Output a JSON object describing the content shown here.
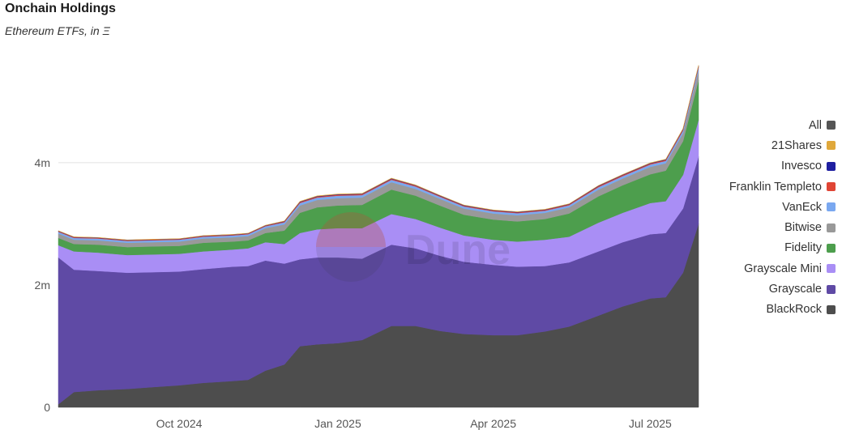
{
  "header": {
    "title": "Onchain Holdings",
    "subtitle": "Ethereum ETFs, in Ξ"
  },
  "watermark": "Dune",
  "chart_data": {
    "type": "area",
    "stacked": true,
    "title": "Onchain Holdings",
    "subtitle": "Ethereum ETFs, in Ξ",
    "x": [
      "2024-07-23",
      "2024-08-01",
      "2024-08-15",
      "2024-09-01",
      "2024-09-15",
      "2024-10-01",
      "2024-10-15",
      "2024-11-01",
      "2024-11-10",
      "2024-11-20",
      "2024-12-01",
      "2024-12-10",
      "2024-12-20",
      "2025-01-01",
      "2025-01-15",
      "2025-02-01",
      "2025-02-15",
      "2025-03-01",
      "2025-03-15",
      "2025-04-01",
      "2025-04-15",
      "2025-05-01",
      "2025-05-15",
      "2025-06-01",
      "2025-06-15",
      "2025-07-01",
      "2025-07-10",
      "2025-07-20",
      "2025-07-29"
    ],
    "x_ticks": [
      "Oct 2024",
      "Jan 2025",
      "Apr 2025",
      "Jul 2025"
    ],
    "y_ticks": [
      "0",
      "2m",
      "4m"
    ],
    "ylim": [
      0,
      5600000
    ],
    "grid": true,
    "legend_position": "right",
    "legend": [
      "All",
      "21Shares",
      "Invesco",
      "Franklin Templeto",
      "VanEck",
      "Bitwise",
      "Fidelity",
      "Grayscale Mini",
      "Grayscale",
      "BlackRock"
    ],
    "legend_colors": [
      "#555555",
      "#e0a83b",
      "#1f1fa0",
      "#e04535",
      "#7aa8f0",
      "#999999",
      "#4d9e4d",
      "#a98ef5",
      "#5f4aa5",
      "#4d4d4d"
    ],
    "series": [
      {
        "name": "BlackRock",
        "color": "#4d4d4d",
        "values": [
          50000,
          250000,
          280000,
          300000,
          330000,
          360000,
          400000,
          430000,
          450000,
          600000,
          700000,
          1000000,
          1030000,
          1050000,
          1100000,
          1330000,
          1330000,
          1250000,
          1200000,
          1180000,
          1180000,
          1240000,
          1320000,
          1500000,
          1650000,
          1780000,
          1800000,
          2200000,
          3000000
        ]
      },
      {
        "name": "Grayscale",
        "color": "#5f4aa5",
        "values": [
          2400000,
          2000000,
          1950000,
          1900000,
          1880000,
          1860000,
          1860000,
          1870000,
          1860000,
          1800000,
          1650000,
          1420000,
          1420000,
          1400000,
          1330000,
          1330000,
          1270000,
          1230000,
          1180000,
          1150000,
          1120000,
          1070000,
          1050000,
          1050000,
          1050000,
          1050000,
          1050000,
          1050000,
          1100000
        ]
      },
      {
        "name": "Grayscale Mini",
        "color": "#a98ef5",
        "values": [
          200000,
          300000,
          300000,
          290000,
          290000,
          290000,
          290000,
          280000,
          290000,
          300000,
          320000,
          430000,
          460000,
          480000,
          500000,
          500000,
          480000,
          460000,
          430000,
          410000,
          410000,
          430000,
          420000,
          470000,
          480000,
          510000,
          520000,
          550000,
          600000
        ]
      },
      {
        "name": "Fidelity",
        "color": "#4d9e4d",
        "values": [
          120000,
          120000,
          130000,
          130000,
          130000,
          130000,
          140000,
          130000,
          130000,
          150000,
          220000,
          330000,
          360000,
          370000,
          380000,
          400000,
          380000,
          360000,
          340000,
          330000,
          330000,
          340000,
          380000,
          430000,
          450000,
          470000,
          500000,
          550000,
          650000
        ]
      },
      {
        "name": "Bitwise",
        "color": "#999999",
        "values": [
          70000,
          70000,
          70000,
          70000,
          70000,
          70000,
          70000,
          70000,
          70000,
          80000,
          100000,
          120000,
          120000,
          120000,
          120000,
          120000,
          110000,
          110000,
          100000,
          100000,
          100000,
          100000,
          100000,
          110000,
          110000,
          120000,
          120000,
          130000,
          150000
        ]
      },
      {
        "name": "VanEck",
        "color": "#7aa8f0",
        "values": [
          30000,
          30000,
          30000,
          30000,
          30000,
          30000,
          30000,
          30000,
          30000,
          30000,
          35000,
          40000,
          40000,
          40000,
          40000,
          40000,
          40000,
          35000,
          35000,
          35000,
          35000,
          35000,
          35000,
          40000,
          40000,
          40000,
          40000,
          45000,
          55000
        ]
      },
      {
        "name": "Franklin Templeto",
        "color": "#e04535",
        "values": [
          10000,
          10000,
          10000,
          10000,
          10000,
          10000,
          10000,
          10000,
          10000,
          10000,
          12000,
          15000,
          15000,
          15000,
          15000,
          15000,
          15000,
          12000,
          12000,
          12000,
          12000,
          12000,
          12000,
          15000,
          15000,
          15000,
          15000,
          18000,
          20000
        ]
      },
      {
        "name": "Invesco",
        "color": "#1f1fa0",
        "values": [
          5000,
          5000,
          5000,
          5000,
          5000,
          5000,
          5000,
          5000,
          5000,
          5000,
          6000,
          8000,
          8000,
          8000,
          8000,
          8000,
          7000,
          7000,
          7000,
          7000,
          7000,
          7000,
          7000,
          8000,
          8000,
          8000,
          8000,
          9000,
          10000
        ]
      },
      {
        "name": "21Shares",
        "color": "#e0a83b",
        "values": [
          3000,
          3000,
          3000,
          3000,
          3000,
          3000,
          3000,
          3000,
          3000,
          3000,
          4000,
          5000,
          5000,
          5000,
          5000,
          5000,
          5000,
          5000,
          4000,
          4000,
          4000,
          4000,
          4000,
          5000,
          5000,
          5000,
          5000,
          6000,
          7000
        ]
      }
    ]
  }
}
